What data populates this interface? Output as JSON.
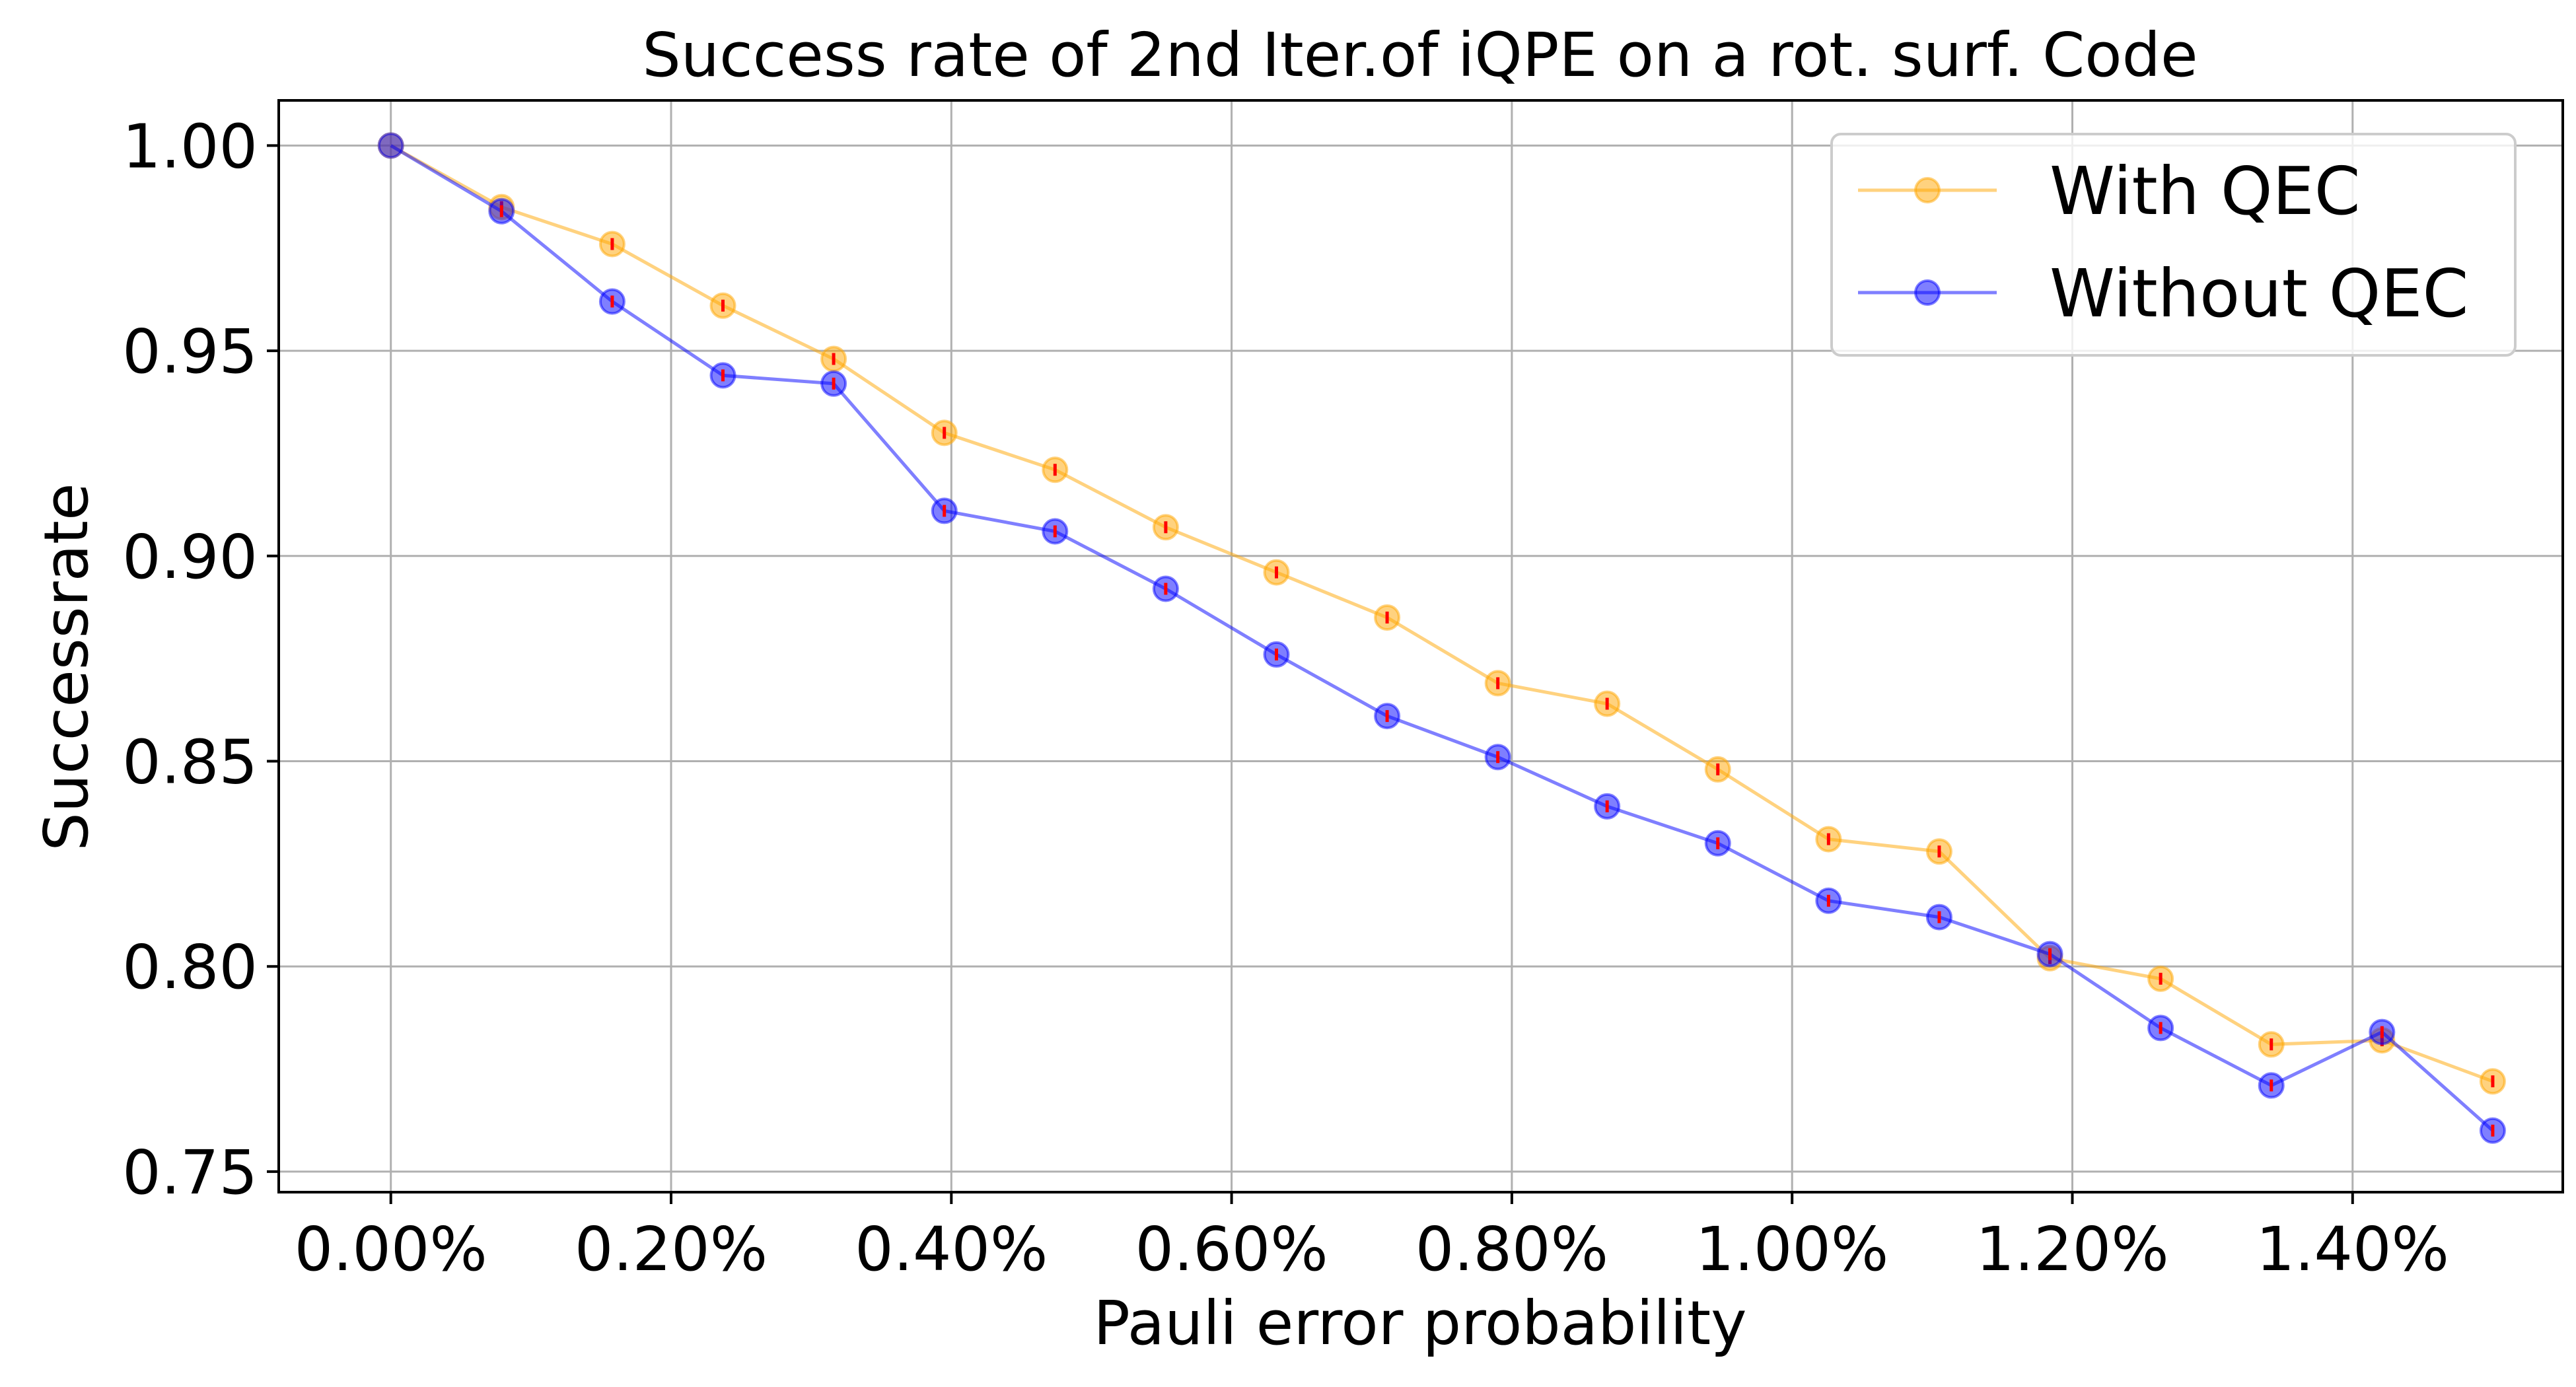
{
  "chart_data": {
    "type": "line",
    "title": "Success rate of 2nd Iter.of iQPE on a rot. surf. Code",
    "xlabel": "Pauli error probability",
    "ylabel": "Successrate",
    "xlim": [
      -0.0008,
      0.0155
    ],
    "ylim": [
      0.745,
      1.011
    ],
    "x_ticks": [
      {
        "value": 0.0,
        "label": "0.00%"
      },
      {
        "value": 0.002,
        "label": "0.20%"
      },
      {
        "value": 0.004,
        "label": "0.40%"
      },
      {
        "value": 0.006,
        "label": "0.60%"
      },
      {
        "value": 0.008,
        "label": "0.80%"
      },
      {
        "value": 0.01,
        "label": "1.00%"
      },
      {
        "value": 0.012,
        "label": "1.20%"
      },
      {
        "value": 0.014,
        "label": "1.40%"
      }
    ],
    "y_ticks": [
      {
        "value": 0.75,
        "label": "0.75"
      },
      {
        "value": 0.8,
        "label": "0.80"
      },
      {
        "value": 0.85,
        "label": "0.85"
      },
      {
        "value": 0.9,
        "label": "0.90"
      },
      {
        "value": 0.95,
        "label": "0.95"
      },
      {
        "value": 1.0,
        "label": "1.00"
      }
    ],
    "grid": true,
    "legend_position": "top-right",
    "x": [
      0.0,
      0.00079,
      0.00158,
      0.00237,
      0.00316,
      0.00395,
      0.00474,
      0.00553,
      0.00632,
      0.00711,
      0.0079,
      0.00868,
      0.00947,
      0.01026,
      0.01105,
      0.01184,
      0.01263,
      0.01342,
      0.01421,
      0.015
    ],
    "series": [
      {
        "name": "With QEC",
        "color": "#ffa500",
        "values": [
          1.0,
          0.985,
          0.976,
          0.961,
          0.948,
          0.93,
          0.921,
          0.907,
          0.896,
          0.885,
          0.869,
          0.864,
          0.848,
          0.831,
          0.828,
          0.802,
          0.797,
          0.781,
          0.782,
          0.772
        ]
      },
      {
        "name": "Without QEC",
        "color": "#0000ff",
        "values": [
          1.0,
          0.984,
          0.962,
          0.944,
          0.942,
          0.911,
          0.906,
          0.892,
          0.876,
          0.861,
          0.851,
          0.839,
          0.83,
          0.816,
          0.812,
          0.803,
          0.785,
          0.771,
          0.784,
          0.76
        ]
      }
    ],
    "error_bar_color": "#ff0000"
  }
}
